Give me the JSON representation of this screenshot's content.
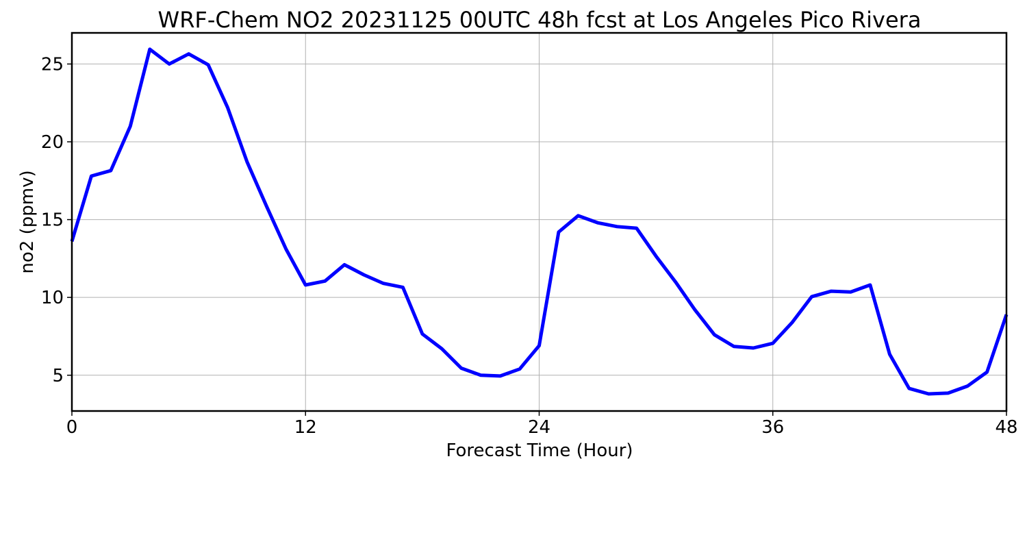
{
  "chart_data": {
    "type": "line",
    "title": "WRF-Chem NO2  20231125 00UTC 48h fcst at Los Angeles Pico Rivera",
    "xlabel": "Forecast Time (Hour)",
    "ylabel": "no2  (ppmv)",
    "xlim": [
      0,
      48
    ],
    "ylim": [
      2.7,
      27
    ],
    "x_ticks": [
      0,
      12,
      24,
      36,
      48
    ],
    "y_ticks": [
      5,
      10,
      15,
      20,
      25
    ],
    "grid": true,
    "legend": "none",
    "x": [
      0,
      1,
      2,
      3,
      4,
      5,
      6,
      7,
      8,
      9,
      10,
      11,
      12,
      13,
      14,
      15,
      16,
      17,
      18,
      19,
      20,
      21,
      22,
      23,
      24,
      25,
      26,
      27,
      28,
      29,
      30,
      31,
      32,
      33,
      34,
      35,
      36,
      37,
      38,
      39,
      40,
      41,
      42,
      43,
      44,
      45,
      46,
      47,
      48
    ],
    "series": [
      {
        "color": "#0000ff",
        "values": [
          13.6,
          17.8,
          18.15,
          21.0,
          25.95,
          25.0,
          25.65,
          24.95,
          22.2,
          18.7,
          15.85,
          13.1,
          10.8,
          11.05,
          12.1,
          11.45,
          10.9,
          10.65,
          7.65,
          6.7,
          5.45,
          5.0,
          4.95,
          5.4,
          6.9,
          14.2,
          15.25,
          14.8,
          14.55,
          14.45,
          12.65,
          11.0,
          9.2,
          7.6,
          6.85,
          6.75,
          7.05,
          8.4,
          10.05,
          10.4,
          10.35,
          10.8,
          6.35,
          4.15,
          3.8,
          3.85,
          4.3,
          5.2,
          8.9
        ]
      }
    ]
  }
}
